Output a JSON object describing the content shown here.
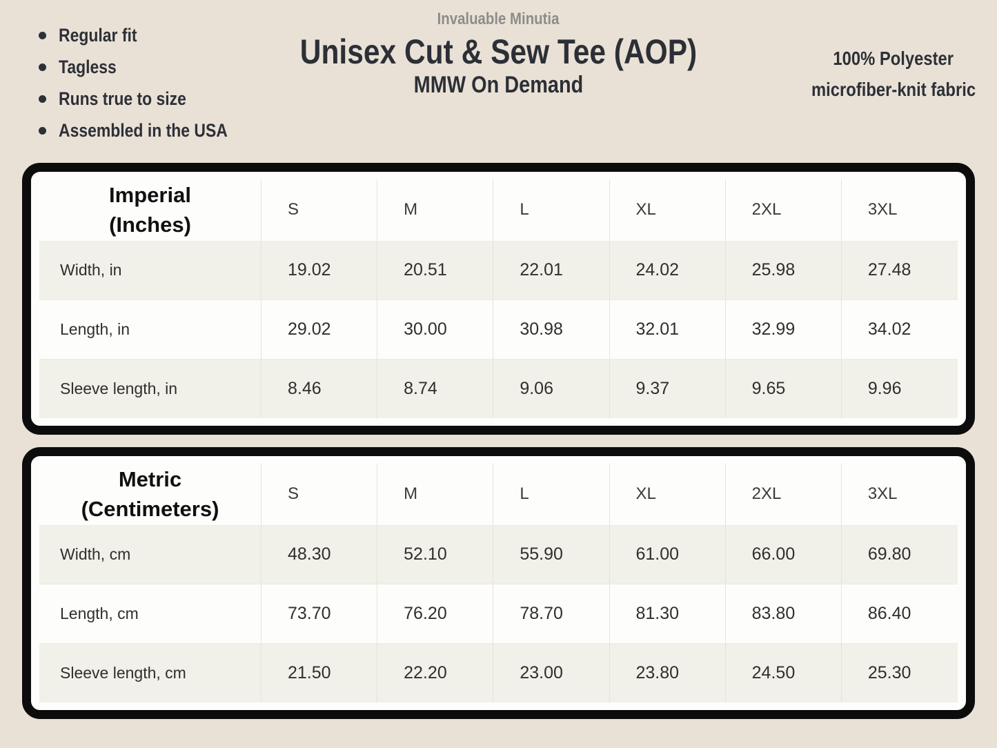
{
  "colors": {
    "background": "#e9e1d6",
    "frame_border": "#0c0c0c",
    "table_bg": "#fdfdfb",
    "row_alt_bg": "#f1f0e9",
    "text_dark": "#2d3037",
    "text_muted": "#8d8c8a"
  },
  "features": {
    "items": [
      "Regular fit",
      "Tagless",
      "Runs true to size",
      "Assembled in the USA"
    ]
  },
  "header": {
    "brand": "Invaluable Minutia",
    "title": "Unisex Cut & Sew Tee (AOP)",
    "subtitle": "MMW On Demand",
    "fabric_line1": "100% Polyester",
    "fabric_line2": "microfiber-knit fabric"
  },
  "size_tables": [
    {
      "unit_label_line1": "Imperial",
      "unit_label_line2": "(Inches)",
      "columns": [
        "S",
        "M",
        "L",
        "XL",
        "2XL",
        "3XL"
      ],
      "rows": [
        {
          "label": "Width, in",
          "values": [
            "19.02",
            "20.51",
            "22.01",
            "24.02",
            "25.98",
            "27.48"
          ]
        },
        {
          "label": "Length, in",
          "values": [
            "29.02",
            "30.00",
            "30.98",
            "32.01",
            "32.99",
            "34.02"
          ]
        },
        {
          "label": "Sleeve length, in",
          "values": [
            "8.46",
            "8.74",
            "9.06",
            "9.37",
            "9.65",
            "9.96"
          ]
        }
      ]
    },
    {
      "unit_label_line1": "Metric",
      "unit_label_line2": "(Centimeters)",
      "columns": [
        "S",
        "M",
        "L",
        "XL",
        "2XL",
        "3XL"
      ],
      "rows": [
        {
          "label": "Width, cm",
          "values": [
            "48.30",
            "52.10",
            "55.90",
            "61.00",
            "66.00",
            "69.80"
          ]
        },
        {
          "label": "Length, cm",
          "values": [
            "73.70",
            "76.20",
            "78.70",
            "81.30",
            "83.80",
            "86.40"
          ]
        },
        {
          "label": "Sleeve length, cm",
          "values": [
            "21.50",
            "22.20",
            "23.00",
            "23.80",
            "24.50",
            "25.30"
          ]
        }
      ]
    }
  ]
}
